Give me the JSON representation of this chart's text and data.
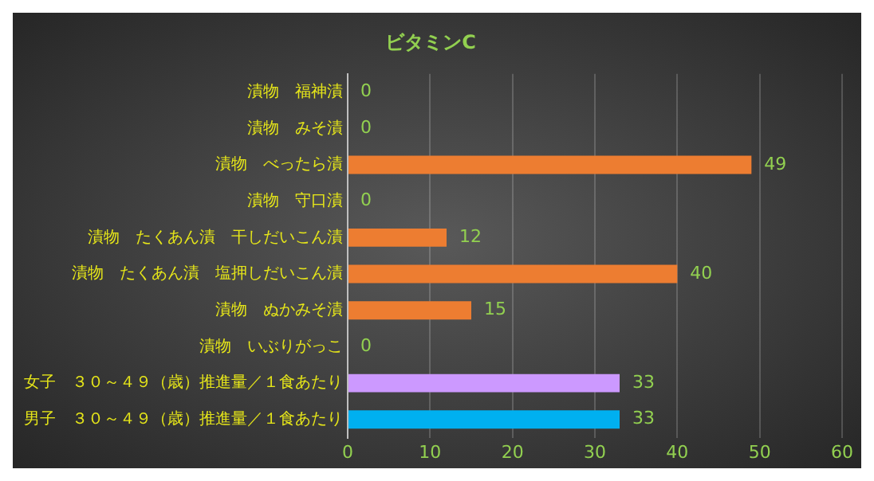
{
  "chart_data": {
    "type": "bar",
    "orientation": "horizontal",
    "title": "ビタミンC",
    "categories": [
      "漬物　福神漬",
      "漬物　みそ漬",
      "漬物　べったら漬",
      "漬物　守口漬",
      "漬物　たくあん漬　干しだいこん漬",
      "漬物　たくあん漬　塩押しだいこん漬",
      "漬物　ぬかみそ漬",
      "漬物　いぶりがっこ",
      "女子　３０～４９（歳）推進量／１食あたり",
      "男子　３０～４９（歳）推進量／１食あたり"
    ],
    "values": [
      0,
      0,
      49,
      0,
      12,
      40,
      15,
      0,
      33,
      33
    ],
    "colors": [
      "#ed7d31",
      "#ed7d31",
      "#ed7d31",
      "#ed7d31",
      "#ed7d31",
      "#ed7d31",
      "#ed7d31",
      "#ed7d31",
      "#cc99ff",
      "#00b0f0"
    ],
    "xlim": [
      0,
      60
    ],
    "xticks": [
      0,
      10,
      20,
      30,
      40,
      50,
      60
    ],
    "grid": "x",
    "data_labels": true,
    "legend": false
  }
}
